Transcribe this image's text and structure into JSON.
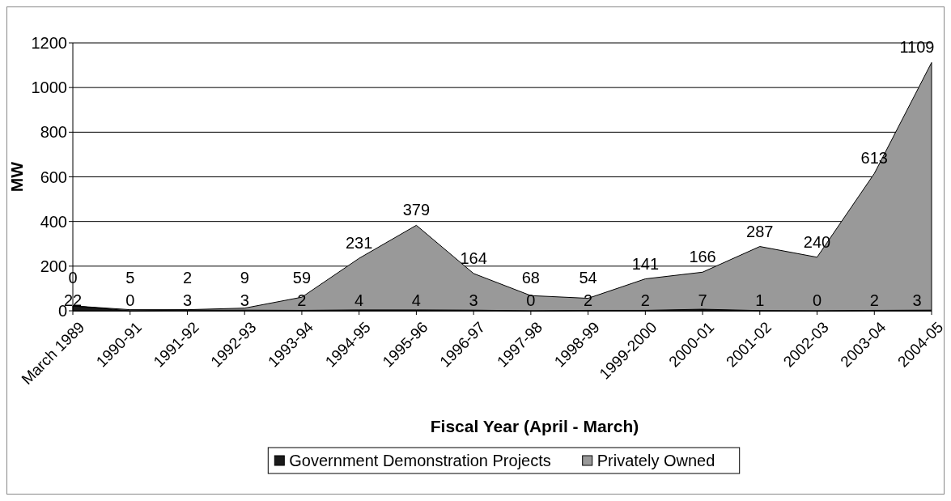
{
  "chart_data": {
    "type": "area",
    "stacked": true,
    "xlabel": "Fiscal Year (April - March)",
    "ylabel": "MW",
    "categories": [
      "March 1989",
      "1990-91",
      "1991-92",
      "1992-93",
      "1993-94",
      "1994-95",
      "1995-96",
      "1996-97",
      "1997-98",
      "1998-99",
      "1999-2000",
      "2000-01",
      "2001-02",
      "2002-03",
      "2003-04",
      "2004-05"
    ],
    "series": [
      {
        "name": "Government Demonstration Projects",
        "color": "#1a1a1a",
        "values": [
          22,
          0,
          3,
          3,
          2,
          4,
          4,
          3,
          0,
          2,
          2,
          7,
          1,
          0,
          2,
          3
        ]
      },
      {
        "name": "Privately Owned",
        "color": "#999999",
        "values": [
          0,
          5,
          2,
          9,
          59,
          231,
          379,
          164,
          68,
          54,
          141,
          166,
          287,
          240,
          613,
          1109
        ]
      }
    ],
    "ylim": [
      0,
      1200
    ],
    "yticks": [
      0,
      200,
      400,
      600,
      800,
      1000,
      1200
    ],
    "grid": "y",
    "legend": "bottom",
    "data_labels": true
  }
}
